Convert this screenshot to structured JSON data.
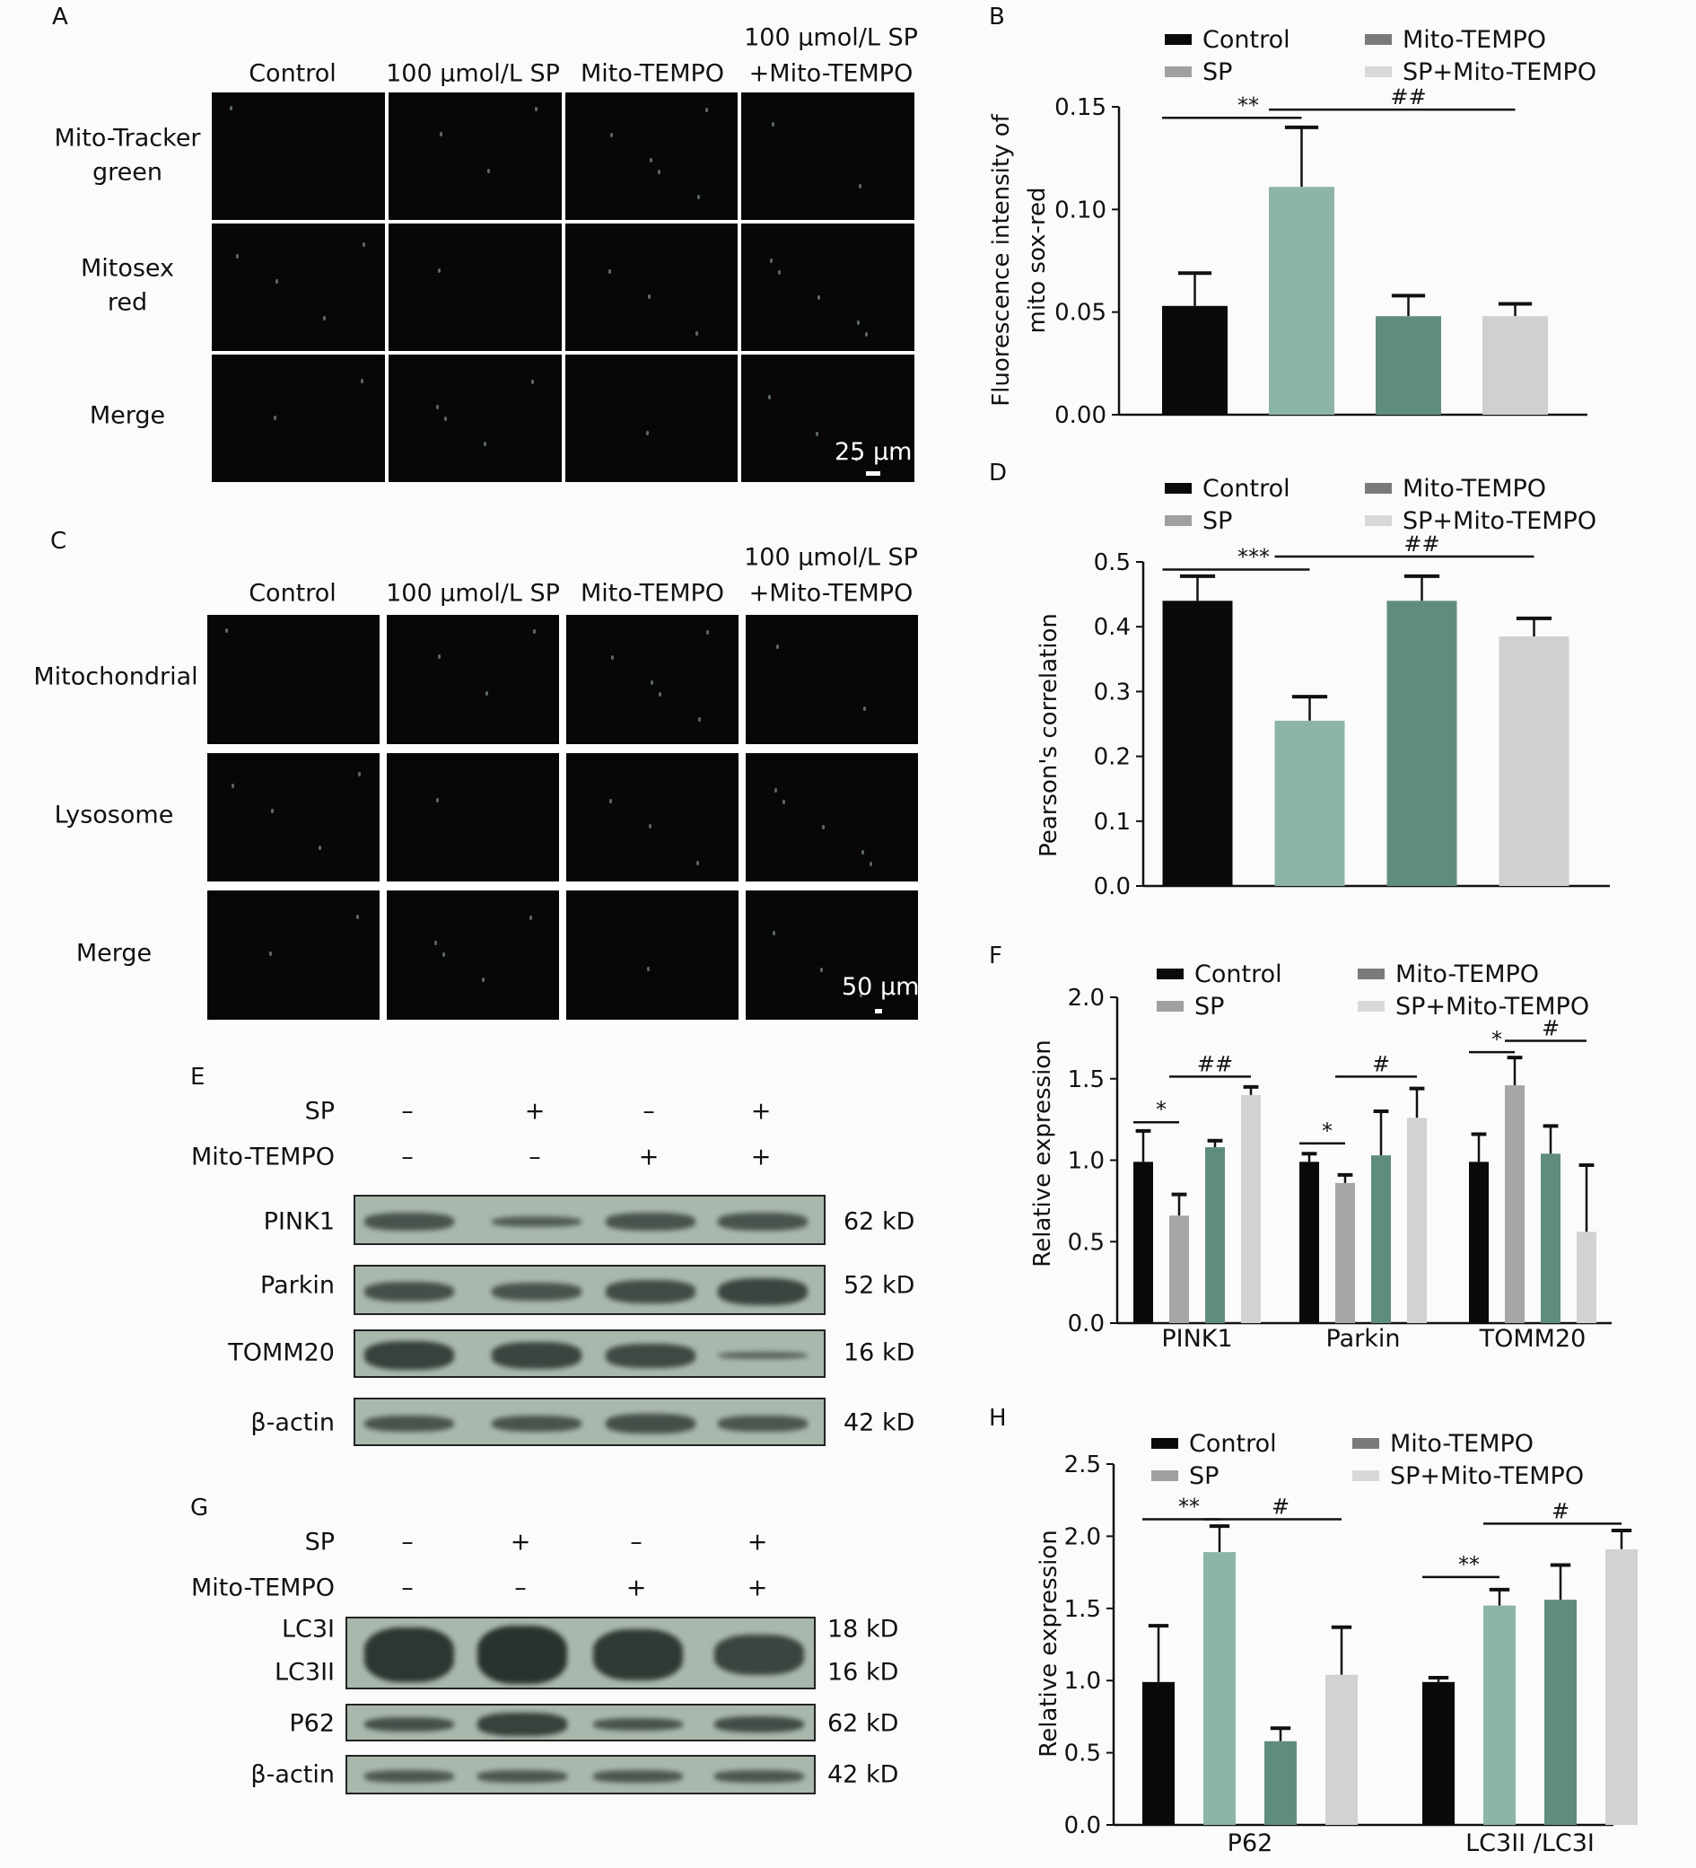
{
  "panels": {
    "a": "A",
    "b": "B",
    "c": "C",
    "d": "D",
    "e": "E",
    "f": "F",
    "g": "G",
    "h": "H"
  },
  "panel_a": {
    "columns": [
      "Control",
      "100 μmol/L SP",
      "Mito-TEMPO",
      "100 μmol/L SP",
      "+Mito-TEMPO"
    ],
    "rows": [
      "Mito-Tracker",
      "green",
      "Mitosex",
      "red",
      "Merge"
    ],
    "scale": "25 μm"
  },
  "panel_c": {
    "columns": [
      "Control",
      "100 μmol/L SP",
      "Mito-TEMPO",
      "100 μmol/L SP",
      "+Mito-TEMPO"
    ],
    "rows": [
      "Mitochondrial",
      "Lysosome",
      "Merge"
    ],
    "scale": "50 μm"
  },
  "panel_e": {
    "conditions": [
      {
        "label": "SP",
        "signs": [
          "–",
          "+",
          "–",
          "+"
        ]
      },
      {
        "label": "Mito-TEMPO",
        "signs": [
          "–",
          "–",
          "+",
          "+"
        ]
      }
    ],
    "proteins": [
      {
        "name": "PINK1",
        "kd": "62 kD"
      },
      {
        "name": "Parkin",
        "kd": "52 kD"
      },
      {
        "name": "TOMM20",
        "kd": "16 kD"
      },
      {
        "name": "β-actin",
        "kd": "42 kD"
      }
    ]
  },
  "panel_g": {
    "conditions": [
      {
        "label": "SP",
        "signs": [
          "–",
          "+",
          "–",
          "+"
        ]
      },
      {
        "label": "Mito-TEMPO",
        "signs": [
          "–",
          "–",
          "+",
          "+"
        ]
      }
    ],
    "proteins": [
      {
        "name": "LC3I",
        "kd": "18 kD"
      },
      {
        "name": "LC3II",
        "kd": "16 kD"
      },
      {
        "name": "P62",
        "kd": "62 kD"
      },
      {
        "name": "β-actin",
        "kd": "42 kD"
      }
    ]
  },
  "chart_data": [
    {
      "id": "B",
      "type": "bar",
      "ylabel": [
        "Fluorescence intensity of",
        "mito sox-red"
      ],
      "ylim": [
        0,
        0.15
      ],
      "ticks": [
        "0.00",
        "0.05",
        "0.10",
        "0.15"
      ],
      "tick_values": [
        0,
        0.05,
        0.1,
        0.15
      ],
      "legend": [
        "Control",
        "SP",
        "Mito-TEMPO",
        "SP+Mito-TEMPO"
      ],
      "legend_colors": [
        "#0a0a0a",
        "#a0a0a0",
        "#7a7a7a",
        "#d8d8d8"
      ],
      "legend_placement": "top",
      "categories": [
        ""
      ],
      "series": [
        {
          "name": "Control",
          "values": [
            0.053
          ],
          "err_top": [
            0.069
          ],
          "color": "#0a0a0a"
        },
        {
          "name": "SP",
          "values": [
            0.111
          ],
          "err_top": [
            0.14
          ],
          "color": "#8db5a6"
        },
        {
          "name": "Mito-TEMPO",
          "values": [
            0.048
          ],
          "err_top": [
            0.058
          ],
          "color": "#5f8d7d"
        },
        {
          "name": "SP+Mito-TEMPO",
          "values": [
            0.048
          ],
          "err_top": [
            0.054
          ],
          "color": "#d0d0d0"
        }
      ],
      "annotations": [
        {
          "label": "**",
          "group": 0,
          "from": 0,
          "to": 1,
          "y": 0.142
        },
        {
          "label": "##",
          "group": 0,
          "from": 1,
          "to": 3,
          "y": 0.146
        }
      ]
    },
    {
      "id": "D",
      "type": "bar",
      "ylabel": [
        "Pearson's correlation"
      ],
      "ylim": [
        0,
        0.5
      ],
      "ticks": [
        "0.0",
        "0.1",
        "0.2",
        "0.3",
        "0.4",
        "0.5"
      ],
      "tick_values": [
        0,
        0.1,
        0.2,
        0.3,
        0.4,
        0.5
      ],
      "legend": [
        "Control",
        "SP",
        "Mito-TEMPO",
        "SP+Mito-TEMPO"
      ],
      "legend_colors": [
        "#0a0a0a",
        "#a0a0a0",
        "#7a7a7a",
        "#d8d8d8"
      ],
      "legend_placement": "top",
      "categories": [
        ""
      ],
      "series": [
        {
          "name": "Control",
          "values": [
            0.44
          ],
          "err_top": [
            0.478
          ],
          "color": "#0a0a0a"
        },
        {
          "name": "SP",
          "values": [
            0.255
          ],
          "err_top": [
            0.292
          ],
          "color": "#8db5a6"
        },
        {
          "name": "Mito-TEMPO",
          "values": [
            0.44
          ],
          "err_top": [
            0.478
          ],
          "color": "#5f8d7d"
        },
        {
          "name": "SP+Mito-TEMPO",
          "values": [
            0.385
          ],
          "err_top": [
            0.413
          ],
          "color": "#d0d0d0"
        }
      ],
      "annotations": [
        {
          "label": "***",
          "group": 0,
          "from": 0,
          "to": 1,
          "y": 0.48
        },
        {
          "label": "##",
          "group": 0,
          "from": 1,
          "to": 3,
          "y": 0.5
        }
      ]
    },
    {
      "id": "F",
      "type": "bar",
      "ylabel": [
        "Relative expression"
      ],
      "ylim": [
        0,
        2.0
      ],
      "ticks": [
        "0.0",
        "0.5",
        "1.0",
        "1.5",
        "2.0"
      ],
      "tick_values": [
        0,
        0.5,
        1,
        1.5,
        2
      ],
      "legend": [
        "Control",
        "SP",
        "Mito-TEMPO",
        "SP+Mito-TEMPO"
      ],
      "legend_colors": [
        "#0a0a0a",
        "#a0a0a0",
        "#7a7a7a",
        "#d8d8d8"
      ],
      "legend_placement": "top",
      "categories": [
        "PINK1",
        "Parkin",
        "TOMM20"
      ],
      "series": [
        {
          "name": "Control",
          "values": [
            0.99,
            0.99,
            0.99
          ],
          "err_top": [
            1.18,
            1.04,
            1.16
          ],
          "color": "#0a0a0a"
        },
        {
          "name": "SP",
          "values": [
            0.66,
            0.86,
            1.46
          ],
          "err_top": [
            0.79,
            0.91,
            1.63
          ],
          "color": "#a6a6a6"
        },
        {
          "name": "Mito-TEMPO",
          "values": [
            1.08,
            1.03,
            1.04
          ],
          "err_top": [
            1.12,
            1.3,
            1.21
          ],
          "color": "#5f8d7d"
        },
        {
          "name": "SP+Mito-TEMPO",
          "values": [
            1.4,
            1.26,
            0.56
          ],
          "err_top": [
            1.45,
            1.44,
            0.97
          ],
          "color": "#d2d2d2"
        }
      ],
      "annotations": [
        {
          "label": "*",
          "group": 0,
          "from": 0,
          "to": 1,
          "y": 1.2
        },
        {
          "label": "##",
          "group": 0,
          "from": 1,
          "to": 3,
          "y": 1.48
        },
        {
          "label": "*",
          "group": 1,
          "from": 0,
          "to": 1,
          "y": 1.07
        },
        {
          "label": "#",
          "group": 1,
          "from": 1,
          "to": 3,
          "y": 1.48
        },
        {
          "label": "*",
          "group": 2,
          "from": 0,
          "to": 1,
          "y": 1.63
        },
        {
          "label": "#",
          "group": 2,
          "from": 1,
          "to": 3,
          "y": 1.7
        }
      ]
    },
    {
      "id": "H",
      "type": "bar",
      "ylabel": [
        "Relative expression"
      ],
      "ylim": [
        0,
        2.5
      ],
      "ticks": [
        "0.0",
        "0.5",
        "1.0",
        "1.5",
        "2.0",
        "2.5"
      ],
      "tick_values": [
        0,
        0.5,
        1,
        1.5,
        2,
        2.5
      ],
      "legend": [
        "Control",
        "SP",
        "Mito-TEMPO",
        "SP+Mito-TEMPO"
      ],
      "legend_colors": [
        "#0a0a0a",
        "#a0a0a0",
        "#7a7a7a",
        "#d8d8d8"
      ],
      "legend_placement": "top",
      "categories": [
        "P62",
        "LC3II /LC3I"
      ],
      "series": [
        {
          "name": "Control",
          "values": [
            0.99,
            0.99
          ],
          "err_top": [
            1.38,
            1.02
          ],
          "color": "#0a0a0a"
        },
        {
          "name": "SP",
          "values": [
            1.89,
            1.52
          ],
          "err_top": [
            2.07,
            1.63
          ],
          "color": "#8db5a6"
        },
        {
          "name": "Mito-TEMPO",
          "values": [
            0.58,
            1.56
          ],
          "err_top": [
            0.67,
            1.8
          ],
          "color": "#5f8d7d"
        },
        {
          "name": "SP+Mito-TEMPO",
          "values": [
            1.04,
            1.91
          ],
          "err_top": [
            1.37,
            2.04
          ],
          "color": "#d2d2d2"
        }
      ],
      "annotations": [
        {
          "label": "**",
          "group": 0,
          "from": 0,
          "to": 1,
          "y": 2.08
        },
        {
          "label": "#",
          "group": 0,
          "from": 1,
          "to": 3,
          "y": 2.08
        },
        {
          "label": "**",
          "group": 1,
          "from": 0,
          "to": 1,
          "y": 1.68
        },
        {
          "label": "#",
          "group": 1,
          "from": 1,
          "to": 3,
          "y": 2.05
        }
      ]
    }
  ]
}
